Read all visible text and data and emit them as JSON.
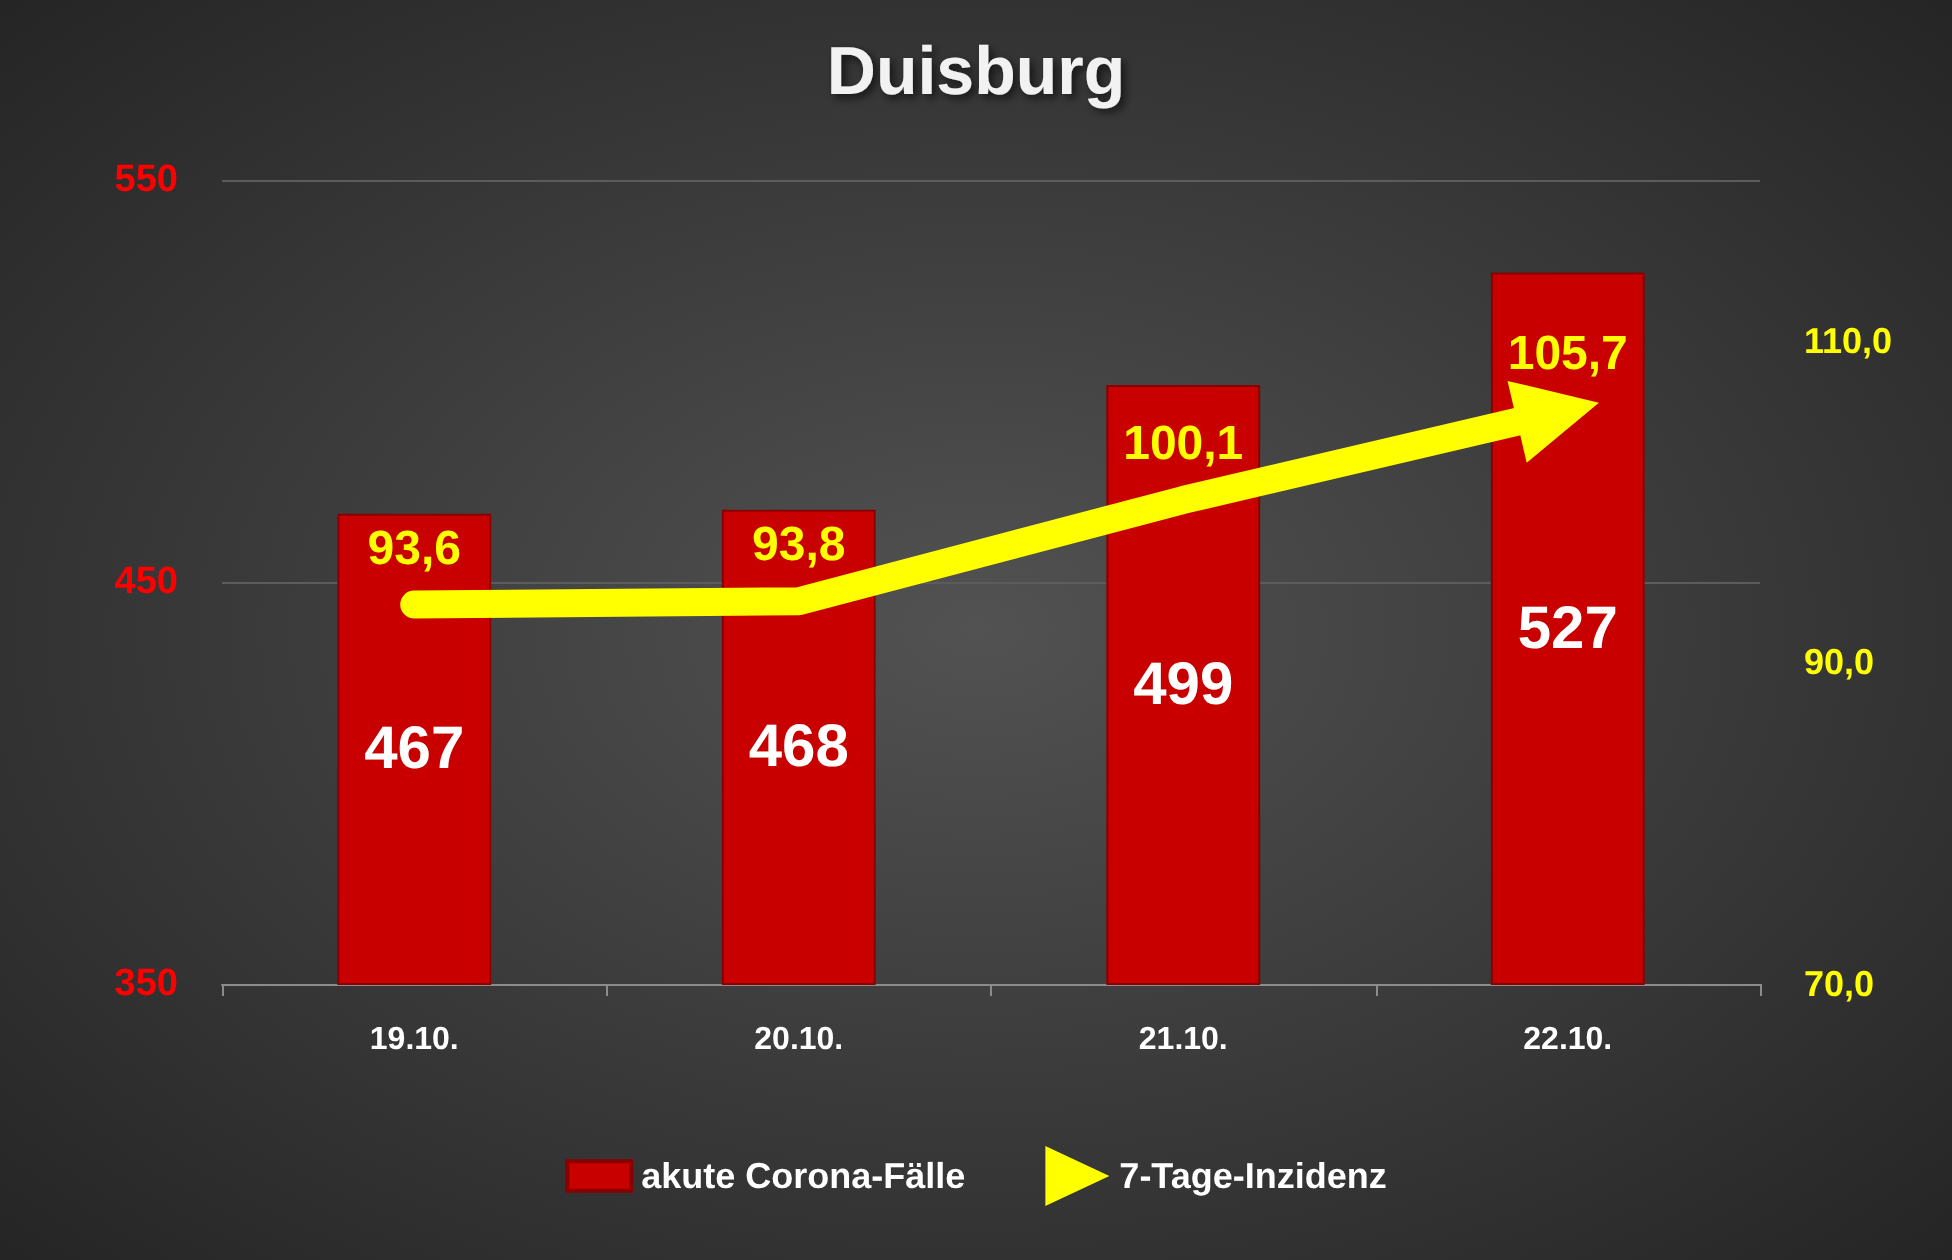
{
  "chart_data": {
    "type": "bar",
    "title": "Duisburg",
    "categories": [
      "19.10.",
      "20.10.",
      "21.10.",
      "22.10."
    ],
    "series": [
      {
        "name": "akute Corona-Fälle",
        "color": "#c80000",
        "values": [
          467,
          468,
          499,
          527
        ],
        "value_labels": [
          "467",
          "468",
          "499",
          "527"
        ]
      },
      {
        "name": "7-Tage-Inzidenz",
        "type": "line",
        "axis": "y2",
        "color": "#ffff00",
        "values": [
          93.6,
          93.8,
          100.1,
          105.7
        ],
        "value_labels": [
          "93,6",
          "93,8",
          "100,1",
          "105,7"
        ]
      }
    ],
    "ylim": [
      350,
      550
    ],
    "yticks": [
      350,
      450,
      550
    ],
    "y2lim": [
      70,
      120
    ],
    "y2ticks": [
      {
        "value": 70,
        "label": "70,0"
      },
      {
        "value": 90,
        "label": "90,0"
      },
      {
        "value": 110,
        "label": "110,0"
      }
    ],
    "grid": "y",
    "legend": "bottom"
  }
}
